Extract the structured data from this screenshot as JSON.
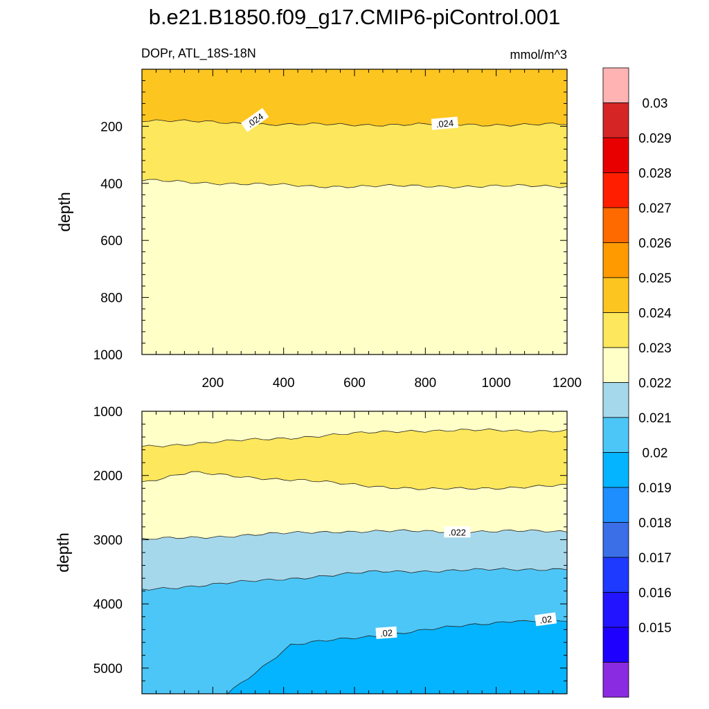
{
  "chart_data": {
    "type": "contour",
    "title": "b.e21.B1850.f09_g17.CMIP6-piControl.001",
    "variable_label": "DOPr, ATL_18S-18N",
    "units_label": "mmol/m^3",
    "colorbar": {
      "labels": [
        "0.03",
        "0.029",
        "0.028",
        "0.027",
        "0.026",
        "0.025",
        "0.024",
        "0.023",
        "0.022",
        "0.021",
        "0.02",
        "0.019",
        "0.018",
        "0.017",
        "0.016",
        "0.015"
      ],
      "colors": [
        "#FFB3B3",
        "#D62525",
        "#E80000",
        "#FF1F00",
        "#FF6A00",
        "#FF9A00",
        "#FDC51F",
        "#FDE75C",
        "#FFFFC8",
        "#A6D8EC",
        "#4CC6F6",
        "#05B4FF",
        "#1E8EFF",
        "#3A6FE8",
        "#1F3AFF",
        "#2214FF",
        "#1E00FF",
        "#8A2BE2"
      ]
    },
    "panels": [
      {
        "name": "top",
        "ylabel": "depth",
        "ylim": [
          0,
          1000
        ],
        "yticks": [
          "200",
          "400",
          "600",
          "800",
          "1000"
        ],
        "xlim": [
          0,
          1200
        ],
        "xticks": [
          "200",
          "400",
          "600",
          "800",
          "1000",
          "1200"
        ],
        "bands": [
          {
            "color": "#FDC51F",
            "top": 0,
            "bottom": 190
          },
          {
            "color": "#FDE75C",
            "top": 190,
            "bottom": 405
          },
          {
            "color": "#FFFFC8",
            "top": 405,
            "bottom": 1000
          }
        ],
        "contour_labels": [
          {
            "text": ".024",
            "x": 320,
            "depth": 180,
            "rotate": -35
          },
          {
            "text": ".024",
            "x": 855,
            "depth": 192,
            "rotate": -5
          }
        ]
      },
      {
        "name": "bottom",
        "ylabel": "depth",
        "ylim": [
          1000,
          5400
        ],
        "yticks": [
          "1000",
          "2000",
          "3000",
          "4000",
          "5000"
        ],
        "xlim": [
          0,
          1200
        ],
        "bands": [
          {
            "color": "#FFFFC8"
          },
          {
            "color": "#FDE75C"
          },
          {
            "color": "#FFFFC8"
          },
          {
            "color": "#A6D8EC"
          },
          {
            "color": "#4CC6F6"
          },
          {
            "color": "#05B4FF"
          }
        ],
        "contour_labels": [
          {
            "text": ".022",
            "x": 890,
            "depth": 2890,
            "rotate": 0
          },
          {
            "text": ".02",
            "x": 690,
            "depth": 4460,
            "rotate": -4
          },
          {
            "text": ".02",
            "x": 1140,
            "depth": 4250,
            "rotate": -8
          }
        ]
      }
    ]
  }
}
